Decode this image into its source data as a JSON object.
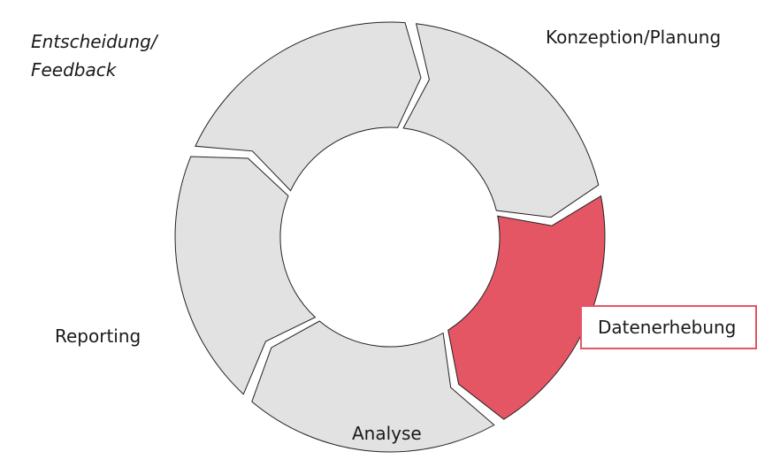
{
  "nodes": [
    {
      "label": "Konzeption/Planung"
    },
    {
      "label": "Datenerhebung"
    },
    {
      "label": "Analyse"
    },
    {
      "label": "Reporting"
    },
    {
      "label_lines": [
        "Entscheidung/",
        "Feedback"
      ]
    }
  ]
}
